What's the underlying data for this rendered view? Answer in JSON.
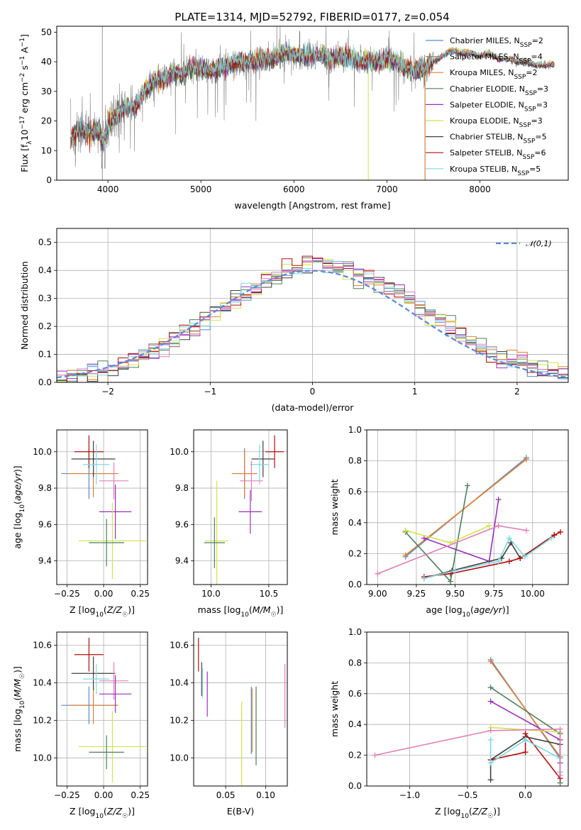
{
  "figure": {
    "title": "PLATE=1314, MJD=52792, FIBERID=0177, z=0.054"
  },
  "chart_data": [
    {
      "type": "line",
      "id": "spectrum",
      "title": "PLATE=1314, MJD=52792, FIBERID=0177, z=0.054",
      "xlabel": "wavelength [Angstrom, rest frame]",
      "ylabel": "Flux [f",
      "ylabel_full": "Flux [fλ10⁻¹⁷ erg cm⁻² s⁻¹ A⁻¹]",
      "xlim": [
        3450,
        8950
      ],
      "ylim": [
        0,
        52
      ],
      "xticks": [
        4000,
        5000,
        6000,
        7000,
        8000
      ],
      "yticks": [
        0,
        10,
        20,
        30,
        40,
        50
      ],
      "grid": false,
      "legend_position": "upper-right",
      "data_color": "#808080",
      "data_range": [
        3600,
        7410
      ],
      "shape_knots": [
        [
          3600,
          14
        ],
        [
          3700,
          17
        ],
        [
          3800,
          16
        ],
        [
          3900,
          17
        ],
        [
          3950,
          13
        ],
        [
          4000,
          18
        ],
        [
          4100,
          22
        ],
        [
          4200,
          25
        ],
        [
          4300,
          25
        ],
        [
          4400,
          30
        ],
        [
          4500,
          34
        ],
        [
          4600,
          34
        ],
        [
          4700,
          36
        ],
        [
          4800,
          36
        ],
        [
          4900,
          38
        ],
        [
          5000,
          38
        ],
        [
          5100,
          37
        ],
        [
          5200,
          38
        ],
        [
          5300,
          39
        ],
        [
          5400,
          40
        ],
        [
          5500,
          40
        ],
        [
          5600,
          40
        ],
        [
          5700,
          41
        ],
        [
          5800,
          41
        ],
        [
          5900,
          43
        ],
        [
          6000,
          42
        ],
        [
          6100,
          42
        ],
        [
          6200,
          42
        ],
        [
          6300,
          42
        ],
        [
          6400,
          41
        ],
        [
          6500,
          42
        ],
        [
          6600,
          41
        ],
        [
          6700,
          40
        ],
        [
          6800,
          40
        ],
        [
          6900,
          40
        ],
        [
          7000,
          41
        ],
        [
          7100,
          40
        ],
        [
          7200,
          38
        ],
        [
          7300,
          37
        ],
        [
          7400,
          38
        ],
        [
          7500,
          40
        ],
        [
          7600,
          42
        ],
        [
          7700,
          44
        ],
        [
          7800,
          43
        ],
        [
          7900,
          43
        ],
        [
          8000,
          42
        ],
        [
          8100,
          43
        ],
        [
          8200,
          41
        ],
        [
          8300,
          41
        ],
        [
          8400,
          40
        ],
        [
          8500,
          40
        ],
        [
          8600,
          39
        ],
        [
          8700,
          39
        ],
        [
          8800,
          39
        ],
        [
          8900,
          39
        ]
      ],
      "model_range": [
        3600,
        8800
      ],
      "series": [
        {
          "name": "Chabrier MILES, N_SSP=2",
          "label_main": "Chabrier MILES, N",
          "label_sub": "SSP",
          "label_end": "=2",
          "color": "#5b8bd6"
        },
        {
          "name": "Salpeter MILES, N_SSP=4",
          "label_main": "Salpeter MILES, N",
          "label_sub": "SSP",
          "label_end": "=4",
          "color": "#8a8a8a"
        },
        {
          "name": "Kroupa MILES, N_SSP=2",
          "label_main": "Kroupa MILES, N",
          "label_sub": "SSP",
          "label_end": "=2",
          "color": "#e08030"
        },
        {
          "name": "Chabrier ELODIE, N_SSP=3",
          "label_main": "Chabrier ELODIE, N",
          "label_sub": "SSP",
          "label_end": "=3",
          "color": "#4e7f5e"
        },
        {
          "name": "Salpeter ELODIE, N_SSP=3",
          "label_main": "Salpeter ELODIE, N",
          "label_sub": "SSP",
          "label_end": "=3",
          "color": "#9b30b8"
        },
        {
          "name": "Kroupa ELODIE, N_SSP=3",
          "label_main": "Kroupa ELODIE, N",
          "label_sub": "SSP",
          "label_end": "=3",
          "color": "#d2e24a"
        },
        {
          "name": "Chabrier STELIB, N_SSP=5",
          "label_main": "Chabrier STELIB, N",
          "label_sub": "SSP",
          "label_end": "=5",
          "color": "#404040"
        },
        {
          "name": "Salpeter STELIB, N_SSP=6",
          "label_main": "Salpeter STELIB, N",
          "label_sub": "SSP",
          "label_end": "=6",
          "color": "#b01010"
        },
        {
          "name": "Kroupa STELIB, N_SSP=5",
          "label_main": "Kroupa STELIB, N",
          "label_sub": "SSP",
          "label_end": "=5",
          "color": "#7fd8e0"
        }
      ]
    },
    {
      "type": "histogram",
      "id": "residuals",
      "xlabel": "(data-model)/error",
      "ylabel": "Normed distribution",
      "xlim": [
        -2.5,
        2.5
      ],
      "ylim": [
        0,
        0.55
      ],
      "xticks": [
        -2,
        -1,
        0,
        1,
        2
      ],
      "yticks": [
        0.0,
        0.1,
        0.2,
        0.3,
        0.4,
        0.5
      ],
      "grid": true,
      "legend_position": "upper-right",
      "gaussian": {
        "name": "𝒩(0,1)",
        "color": "#5b8bd6",
        "mean": 0,
        "sigma": 1
      },
      "bin_edges_start": -2.5,
      "bin_width": 0.1,
      "hist_colors": [
        "#5b8bd6",
        "#e08030",
        "#4e7f5e",
        "#9b30b8",
        "#d2e24a",
        "#404040",
        "#b01010",
        "#7fd8e0",
        "#e07fb8"
      ]
    },
    {
      "type": "errorbar",
      "id": "age-vs-Z",
      "xlabel": "Z [log10(Z/Z☉)]",
      "ylabel": "age [log10(age/yr)]",
      "xlim": [
        -0.32,
        0.3
      ],
      "ylim": [
        9.27,
        10.12
      ],
      "xticks": [
        -0.25,
        0.0,
        0.25
      ],
      "yticks": [
        9.4,
        9.6,
        9.8,
        10.0
      ],
      "grid": true,
      "points": [
        {
          "x": -0.1,
          "y": 9.88,
          "xerr": 0.19,
          "yerr": 0.14,
          "color": "#5b8bd6"
        },
        {
          "x": -0.07,
          "y": 9.88,
          "xerr": 0.17,
          "yerr": 0.13,
          "color": "#e08030"
        },
        {
          "x": -0.1,
          "y": 10.0,
          "xerr": 0.1,
          "yerr": 0.09,
          "color": "#b01010"
        },
        {
          "x": -0.07,
          "y": 9.96,
          "xerr": 0.15,
          "yerr": 0.1,
          "color": "#404040"
        },
        {
          "x": -0.05,
          "y": 9.93,
          "xerr": 0.09,
          "yerr": 0.11,
          "color": "#7fd8e0"
        },
        {
          "x": 0.07,
          "y": 9.84,
          "xerr": 0.1,
          "yerr": 0.1,
          "color": "#e07fb8"
        },
        {
          "x": 0.08,
          "y": 9.67,
          "xerr": 0.11,
          "yerr": 0.15,
          "color": "#9b30b8"
        },
        {
          "x": 0.06,
          "y": 9.51,
          "xerr": 0.23,
          "yerr": 0.21,
          "color": "#d2e24a"
        },
        {
          "x": 0.02,
          "y": 9.5,
          "xerr": 0.12,
          "yerr": 0.13,
          "color": "#4e7f5e"
        }
      ]
    },
    {
      "type": "errorbar",
      "id": "age-vs-mass",
      "xlabel": "mass [log10(M/M☉)]",
      "ylabel": "",
      "xlim": [
        9.85,
        10.66
      ],
      "ylim": [
        9.27,
        10.12
      ],
      "xticks": [
        10.0,
        10.5
      ],
      "yticks": [
        9.4,
        9.6,
        9.8,
        10.0
      ],
      "grid": true,
      "points": [
        {
          "x": 10.29,
          "y": 9.88,
          "xerr": 0.11,
          "yerr": 0.14,
          "color": "#5b8bd6"
        },
        {
          "x": 10.29,
          "y": 9.88,
          "xerr": 0.1,
          "yerr": 0.13,
          "color": "#e08030"
        },
        {
          "x": 10.55,
          "y": 10.0,
          "xerr": 0.08,
          "yerr": 0.09,
          "color": "#b01010"
        },
        {
          "x": 10.45,
          "y": 9.96,
          "xerr": 0.1,
          "yerr": 0.1,
          "color": "#404040"
        },
        {
          "x": 10.42,
          "y": 9.93,
          "xerr": 0.08,
          "yerr": 0.11,
          "color": "#7fd8e0"
        },
        {
          "x": 10.35,
          "y": 9.84,
          "xerr": 0.1,
          "yerr": 0.11,
          "color": "#e07fb8"
        },
        {
          "x": 10.34,
          "y": 9.67,
          "xerr": 0.1,
          "yerr": 0.12,
          "color": "#9b30b8"
        },
        {
          "x": 10.05,
          "y": 9.51,
          "xerr": 0.1,
          "yerr": 0.33,
          "color": "#d2e24a"
        },
        {
          "x": 10.03,
          "y": 9.5,
          "xerr": 0.09,
          "yerr": 0.14,
          "color": "#4e7f5e"
        }
      ]
    },
    {
      "type": "scatter-line",
      "id": "mass-weight-vs-age",
      "xlabel": "age [log10(age/yr)]",
      "ylabel": "mass weight",
      "xlim": [
        8.93,
        10.23
      ],
      "ylim": [
        0,
        1
      ],
      "xticks": [
        9.0,
        9.25,
        9.5,
        9.75,
        10.0
      ],
      "yticks": [
        0.0,
        0.2,
        0.4,
        0.6,
        0.8,
        1.0
      ],
      "grid": true,
      "series": [
        {
          "color": "#5b8bd6",
          "x": [
            9.18,
            9.96
          ],
          "y": [
            0.18,
            0.82
          ]
        },
        {
          "color": "#e08030",
          "x": [
            9.18,
            9.96
          ],
          "y": [
            0.19,
            0.81
          ]
        },
        {
          "color": "#4e7f5e",
          "x": [
            9.18,
            9.47,
            9.58
          ],
          "y": [
            0.34,
            0.02,
            0.64
          ]
        },
        {
          "color": "#9b30b8",
          "x": [
            9.3,
            9.72,
            9.78
          ],
          "y": [
            0.3,
            0.15,
            0.55
          ]
        },
        {
          "color": "#d2e24a",
          "x": [
            9.18,
            9.47,
            9.72
          ],
          "y": [
            0.35,
            0.27,
            0.38
          ]
        },
        {
          "color": "#404040",
          "x": [
            9.3,
            9.48,
            9.8,
            9.86,
            9.92,
            10.14
          ],
          "y": [
            0.04,
            0.09,
            0.17,
            0.27,
            0.17,
            0.32
          ]
        },
        {
          "color": "#b01010",
          "x": [
            9.3,
            9.47,
            9.85,
            9.92,
            10.14,
            10.18
          ],
          "y": [
            0.05,
            0.07,
            0.15,
            0.17,
            0.32,
            0.34
          ]
        },
        {
          "color": "#7fd8e0",
          "x": [
            9.3,
            9.5,
            9.78,
            9.85,
            9.95,
            10.12
          ],
          "y": [
            0.04,
            0.09,
            0.15,
            0.3,
            0.18,
            0.3
          ]
        },
        {
          "color": "#e07fb8",
          "x": [
            9.0,
            9.78,
            9.96
          ],
          "y": [
            0.07,
            0.38,
            0.35
          ]
        }
      ]
    },
    {
      "type": "errorbar",
      "id": "mass-vs-Z",
      "xlabel": "Z [log10(Z/Z☉)]",
      "ylabel": "mass [log10(M/M☉)]",
      "xlim": [
        -0.32,
        0.3
      ],
      "ylim": [
        9.85,
        10.67
      ],
      "xticks": [
        -0.25,
        0.0,
        0.25
      ],
      "yticks": [
        10.0,
        10.2,
        10.4,
        10.6
      ],
      "grid": true,
      "points": [
        {
          "x": -0.1,
          "y": 10.28,
          "xerr": 0.19,
          "yerr": 0.1,
          "color": "#5b8bd6"
        },
        {
          "x": -0.07,
          "y": 10.28,
          "xerr": 0.17,
          "yerr": 0.1,
          "color": "#e08030"
        },
        {
          "x": -0.1,
          "y": 10.55,
          "xerr": 0.1,
          "yerr": 0.09,
          "color": "#b01010"
        },
        {
          "x": -0.07,
          "y": 10.45,
          "xerr": 0.15,
          "yerr": 0.09,
          "color": "#404040"
        },
        {
          "x": -0.05,
          "y": 10.42,
          "xerr": 0.09,
          "yerr": 0.08,
          "color": "#7fd8e0"
        },
        {
          "x": 0.07,
          "y": 10.41,
          "xerr": 0.1,
          "yerr": 0.1,
          "color": "#e07fb8"
        },
        {
          "x": 0.08,
          "y": 10.34,
          "xerr": 0.11,
          "yerr": 0.1,
          "color": "#9b30b8"
        },
        {
          "x": 0.06,
          "y": 10.06,
          "xerr": 0.23,
          "yerr": 0.19,
          "color": "#d2e24a"
        },
        {
          "x": 0.02,
          "y": 10.03,
          "xerr": 0.12,
          "yerr": 0.09,
          "color": "#4e7f5e"
        }
      ]
    },
    {
      "type": "errorbar",
      "id": "mass-vs-EBV",
      "xlabel": "E(B-V)",
      "ylabel": "",
      "xlim": [
        0.01,
        0.127
      ],
      "ylim": [
        9.85,
        10.67
      ],
      "xticks": [
        0.05,
        0.1
      ],
      "yticks": [
        10.0,
        10.2,
        10.4,
        10.6
      ],
      "grid": true,
      "points": [
        {
          "x": 0.016,
          "y": 10.55,
          "xerr": 0,
          "yerr": 0.09,
          "color": "#b01010"
        },
        {
          "x": 0.02,
          "y": 10.42,
          "xerr": 0,
          "yerr": 0.09,
          "color": "#404040"
        },
        {
          "x": 0.021,
          "y": 10.4,
          "xerr": 0,
          "yerr": 0.08,
          "color": "#7fd8e0"
        },
        {
          "x": 0.027,
          "y": 10.34,
          "xerr": 0,
          "yerr": 0.12,
          "color": "#9b30b8"
        },
        {
          "x": 0.07,
          "y": 10.06,
          "xerr": 0,
          "yerr": 0.24,
          "color": "#d2e24a"
        },
        {
          "x": 0.082,
          "y": 10.2,
          "xerr": 0,
          "yerr": 0.18,
          "color": "#5b8bd6"
        },
        {
          "x": 0.083,
          "y": 10.2,
          "xerr": 0,
          "yerr": 0.17,
          "color": "#e08030"
        },
        {
          "x": 0.088,
          "y": 10.17,
          "xerr": 0,
          "yerr": 0.21,
          "color": "#4e7f5e"
        },
        {
          "x": 0.124,
          "y": 10.33,
          "xerr": 0,
          "yerr": 0.17,
          "color": "#e07fb8"
        }
      ]
    },
    {
      "type": "scatter-line",
      "id": "mass-weight-vs-Z",
      "xlabel": "Z [log10(Z/Z☉)]",
      "ylabel": "mass weight",
      "xlim": [
        -1.37,
        0.37
      ],
      "ylim": [
        0,
        1
      ],
      "xticks": [
        -1.0,
        -0.5,
        0.0
      ],
      "yticks": [
        0.0,
        0.2,
        0.4,
        0.6,
        0.8,
        1.0
      ],
      "grid": true,
      "series": [
        {
          "color": "#5b8bd6",
          "x": [
            -0.3,
            0.3
          ],
          "y": [
            0.82,
            0.18
          ]
        },
        {
          "color": "#e08030",
          "x": [
            -0.3,
            0.3
          ],
          "y": [
            0.81,
            0.19
          ]
        },
        {
          "color": "#4e7f5e",
          "x": [
            -0.3,
            0.3,
            0.3
          ],
          "y": [
            0.64,
            0.34,
            0.02
          ]
        },
        {
          "color": "#9b30b8",
          "x": [
            -0.3,
            0.3,
            0.3
          ],
          "y": [
            0.55,
            0.3,
            0.15
          ]
        },
        {
          "color": "#d2e24a",
          "x": [
            -0.3,
            0.3,
            0.3
          ],
          "y": [
            0.38,
            0.35,
            0.27
          ]
        },
        {
          "color": "#404040",
          "x": [
            -0.3,
            -0.3,
            0.0,
            0.3,
            0.3
          ],
          "y": [
            0.04,
            0.17,
            0.32,
            0.27,
            0.09
          ]
        },
        {
          "color": "#b01010",
          "x": [
            -0.3,
            0.0,
            0.0,
            0.3
          ],
          "y": [
            0.17,
            0.22,
            0.34,
            0.05
          ]
        },
        {
          "color": "#7fd8e0",
          "x": [
            -0.3,
            -0.3,
            0.0,
            0.3,
            0.3
          ],
          "y": [
            0.3,
            0.15,
            0.3,
            0.18,
            0.09
          ]
        },
        {
          "color": "#e07fb8",
          "x": [
            -1.3,
            -0.3,
            0.3,
            0.3
          ],
          "y": [
            0.2,
            0.36,
            0.37,
            0.07
          ]
        }
      ]
    }
  ]
}
